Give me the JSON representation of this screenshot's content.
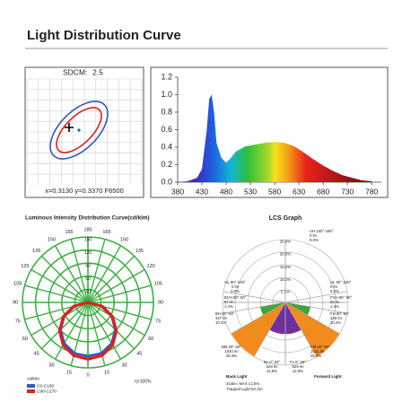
{
  "title": "Light Distribution Curve",
  "chart_data": [
    {
      "type": "sdcm",
      "label": "SDCM:",
      "value": 2.5,
      "caption": "x=0.3130 y=0.3370 F6500"
    },
    {
      "type": "area",
      "color": "spectrum",
      "x": [
        380,
        400,
        420,
        430,
        440,
        445,
        450,
        455,
        460,
        470,
        480,
        490,
        500,
        520,
        540,
        560,
        580,
        600,
        620,
        640,
        660,
        680,
        700,
        720,
        740,
        760,
        780
      ],
      "values": [
        0,
        0.01,
        0.05,
        0.15,
        0.6,
        0.95,
        1.0,
        0.8,
        0.45,
        0.28,
        0.22,
        0.28,
        0.35,
        0.41,
        0.43,
        0.45,
        0.46,
        0.45,
        0.41,
        0.34,
        0.26,
        0.19,
        0.13,
        0.08,
        0.05,
        0.02,
        0.01
      ],
      "xlim": [
        380,
        800
      ],
      "ylim": [
        0,
        1.2
      ],
      "xticks": [
        380,
        430,
        480,
        530,
        580,
        630,
        680,
        730,
        780
      ],
      "yticks": [
        {
          "value": 0,
          "label": "0.0"
        },
        0.2,
        0.4,
        0.6,
        0.8,
        {
          "value": 1,
          "label": "1.0"
        },
        1.2
      ],
      "grid": false
    },
    {
      "type": "polar",
      "title": "Luminous Intensity Distribution Curve(cd/klm)",
      "unit": "cd/klm",
      "efficiency": "η=100%",
      "rlim": [
        0,
        150
      ],
      "rticks": [
        30,
        60,
        90,
        120,
        150
      ],
      "angle_ticks": [
        0,
        15,
        30,
        45,
        60,
        75,
        90,
        105,
        120,
        135,
        150,
        165,
        180
      ],
      "x": [
        -90,
        -75,
        -60,
        -45,
        -30,
        -15,
        0,
        15,
        30,
        45,
        60,
        75,
        90
      ],
      "series": [
        {
          "name": "C0-C180",
          "color": "#2f57c8",
          "values": [
            0,
            30,
            62,
            88,
            108,
            120,
            124,
            120,
            108,
            88,
            62,
            30,
            0
          ]
        },
        {
          "name": "C90-C270",
          "color": "#e01e1e",
          "values": [
            0,
            34,
            65,
            92,
            113,
            126,
            130,
            126,
            113,
            92,
            65,
            34,
            0
          ]
        }
      ]
    },
    {
      "type": "lcs",
      "title": "LCS Graph",
      "rlim": [
        0,
        25.4
      ],
      "rticks": [
        {
          "value": 5.1,
          "label": "5.1%"
        },
        {
          "value": 10.1,
          "label": "10.1%"
        },
        {
          "value": 15.2,
          "label": "15.2%"
        },
        {
          "value": 20.3,
          "label": "20.3%"
        },
        {
          "value": 25.4,
          "label": "25.4%"
        }
      ],
      "top": {
        "name": "UH 100°-180°",
        "range": [
          100,
          180
        ],
        "lumens": "0 lm",
        "value": 0,
        "value_label": "0.0%"
      },
      "series": [
        {
          "name": "Back Light",
          "zones": [
            {
              "name": "BL 0°-30°",
              "range": [
                0,
                30
              ],
              "color": "#7030a0",
              "lumens": "529 lm",
              "value": 12.9,
              "value_label": "12.9%"
            },
            {
              "name": "BM 30°-60°",
              "range": [
                30,
                60
              ],
              "color": "#f28b1e",
              "lumens": "1040 lm",
              "value": 25.3,
              "value_label": "25.3%"
            },
            {
              "name": "BH 60°-80°",
              "range": [
                60,
                80
              ],
              "color": "#3ea63e",
              "lumens": "427 lm",
              "value": 10.4,
              "value_label": "10.4%"
            },
            {
              "name": "BVH 80°-90°",
              "range": [
                80,
                90
              ],
              "color": "#2e6fd6",
              "lumens": "57 lm",
              "value": 1.4,
              "value_label": "1.4%"
            },
            {
              "name": "UL 90°-100°",
              "range": [
                90,
                100
              ],
              "color": "#9bbbe8",
              "lumens": "0 lm",
              "value": 0,
              "value_label": "0.0%"
            }
          ]
        },
        {
          "name": "Forward Light",
          "zones": [
            {
              "name": "FL 0°-30°",
              "range": [
                0,
                30
              ],
              "color": "#7030a0",
              "lumens": "529 lm",
              "value": 12.9,
              "value_label": "12.9%"
            },
            {
              "name": "FM 30°-60°",
              "range": [
                30,
                60
              ],
              "color": "#f28b1e",
              "lumens": "1041 lm",
              "value": 25.4,
              "value_label": "25.4%"
            },
            {
              "name": "FH 60°-80°",
              "range": [
                60,
                80
              ],
              "color": "#3ea63e",
              "lumens": "426 lm",
              "value": 10.4,
              "value_label": "10.4%"
            },
            {
              "name": "FVH 80°-90°",
              "range": [
                80,
                90
              ],
              "color": "#2e6fd6",
              "lumens": "56 lm",
              "value": 1.4,
              "value_label": "1.4%"
            },
            {
              "name": "UL 90°-100°",
              "range": [
                90,
                100
              ],
              "color": "#9bbbe8",
              "lumens": "0 lm",
              "value": 0,
              "value_label": "0.0%"
            }
          ]
        }
      ],
      "notes": [
        "Scale= MAX LCS%",
        "Trapped Light:NA,NA"
      ]
    }
  ]
}
